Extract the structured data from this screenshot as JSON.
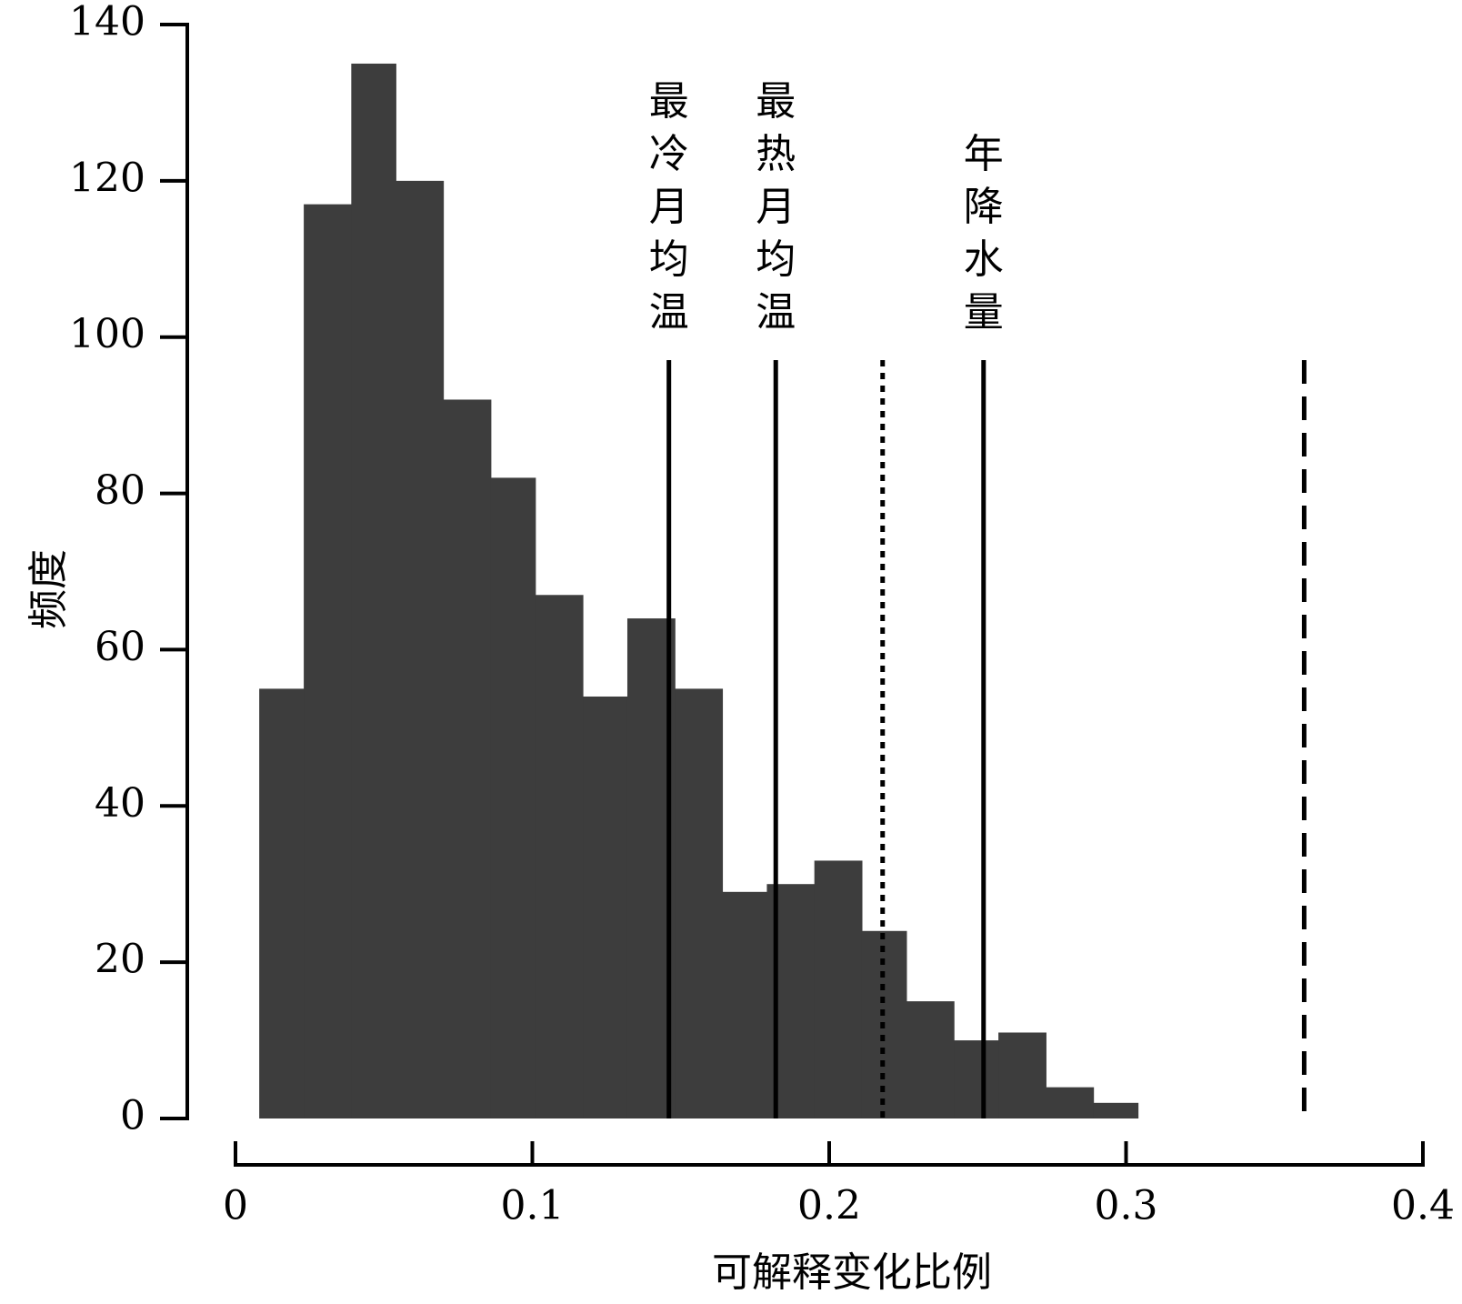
{
  "chart_data": {
    "type": "bar",
    "xlabel": "可解释变化比例",
    "ylabel": "频度",
    "xlim": [
      0,
      0.4
    ],
    "ylim": [
      0,
      140
    ],
    "xticks": [
      0,
      0.1,
      0.2,
      0.3,
      0.4
    ],
    "xtick_labels": [
      "0",
      "0.1",
      "0.2",
      "0.3",
      "0.4"
    ],
    "yticks": [
      0,
      20,
      40,
      60,
      80,
      100,
      120,
      140
    ],
    "ytick_labels": [
      "0",
      "20",
      "40",
      "60",
      "80",
      "100",
      "120",
      "140"
    ],
    "grid": false,
    "bar_color": "#3d3d3d",
    "bins": [
      {
        "x0": 0.008,
        "x1": 0.023,
        "value": 55
      },
      {
        "x0": 0.023,
        "x1": 0.039,
        "value": 117
      },
      {
        "x0": 0.039,
        "x1": 0.054,
        "value": 135
      },
      {
        "x0": 0.054,
        "x1": 0.07,
        "value": 120
      },
      {
        "x0": 0.07,
        "x1": 0.086,
        "value": 92
      },
      {
        "x0": 0.086,
        "x1": 0.101,
        "value": 82
      },
      {
        "x0": 0.101,
        "x1": 0.117,
        "value": 67
      },
      {
        "x0": 0.117,
        "x1": 0.132,
        "value": 54
      },
      {
        "x0": 0.132,
        "x1": 0.148,
        "value": 64
      },
      {
        "x0": 0.148,
        "x1": 0.164,
        "value": 55
      },
      {
        "x0": 0.164,
        "x1": 0.179,
        "value": 29
      },
      {
        "x0": 0.179,
        "x1": 0.195,
        "value": 30
      },
      {
        "x0": 0.195,
        "x1": 0.211,
        "value": 33
      },
      {
        "x0": 0.211,
        "x1": 0.226,
        "value": 24
      },
      {
        "x0": 0.226,
        "x1": 0.242,
        "value": 15
      },
      {
        "x0": 0.242,
        "x1": 0.257,
        "value": 10
      },
      {
        "x0": 0.257,
        "x1": 0.273,
        "value": 11
      },
      {
        "x0": 0.273,
        "x1": 0.289,
        "value": 4
      },
      {
        "x0": 0.289,
        "x1": 0.304,
        "value": 2
      }
    ],
    "reference_lines": [
      {
        "x": 0.146,
        "style": "solid",
        "label": "最冷月均温"
      },
      {
        "x": 0.182,
        "style": "solid",
        "label": "最热月均温"
      },
      {
        "x": 0.218,
        "style": "dotted",
        "label": ""
      },
      {
        "x": 0.252,
        "style": "solid",
        "label": "年降水量"
      },
      {
        "x": 0.36,
        "style": "dashed",
        "label": ""
      }
    ]
  }
}
